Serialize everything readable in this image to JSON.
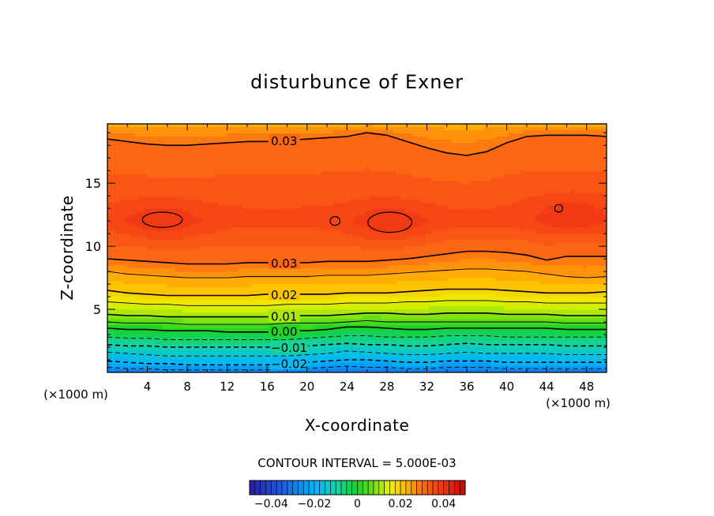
{
  "chart_data": {
    "type": "heatmap",
    "title": "disturbunce of Exner",
    "xlabel": "X-coordinate",
    "ylabel": "Z-coordinate",
    "x_unit_left": "(×1000 m)",
    "x_unit_right": "(×1000 m)",
    "xlim": [
      0,
      50
    ],
    "ylim": [
      0,
      19.7
    ],
    "x_ticks": [
      4,
      8,
      12,
      16,
      20,
      24,
      28,
      32,
      36,
      40,
      44,
      48
    ],
    "y_ticks": [
      5,
      10,
      15
    ],
    "contour_interval_text": "CONTOUR INTERVAL = 5.000E-03",
    "color_range": [
      -0.05,
      0.05
    ],
    "colorbar_ticks": [
      -0.04,
      -0.02,
      0,
      0.02,
      0.04
    ],
    "colorbar_tick_labels": [
      "−0.04",
      "−0.02",
      "0",
      "0.02",
      "0.04"
    ],
    "contours": [
      {
        "value": 0.03,
        "label": "0.03",
        "label_x": 17.7,
        "z": [
          18.5,
          18.3,
          18.1,
          18.0,
          18.0,
          18.1,
          18.2,
          18.3,
          18.3,
          18.4,
          18.5,
          18.6,
          18.7,
          19.0,
          18.8,
          18.3,
          17.8,
          17.4,
          17.2,
          17.5,
          18.2,
          18.7,
          18.8,
          18.8,
          18.8,
          18.7
        ]
      },
      {
        "value": 0.03,
        "label": "0.03",
        "label_x": 17.7,
        "z": [
          9.0,
          8.9,
          8.8,
          8.7,
          8.6,
          8.6,
          8.6,
          8.7,
          8.7,
          8.7,
          8.7,
          8.8,
          8.8,
          8.8,
          8.9,
          9.0,
          9.2,
          9.4,
          9.6,
          9.6,
          9.5,
          9.3,
          8.9,
          9.2,
          9.2,
          9.2
        ]
      },
      {
        "value": 0.025,
        "label": "",
        "label_x": null,
        "z": [
          8.0,
          7.8,
          7.7,
          7.6,
          7.5,
          7.5,
          7.5,
          7.6,
          7.6,
          7.6,
          7.6,
          7.7,
          7.7,
          7.7,
          7.8,
          7.9,
          8.0,
          8.1,
          8.2,
          8.2,
          8.1,
          8.0,
          7.8,
          7.6,
          7.5,
          7.6
        ]
      },
      {
        "value": 0.02,
        "label": "0.02",
        "label_x": 17.7,
        "z": [
          6.5,
          6.3,
          6.2,
          6.1,
          6.1,
          6.1,
          6.1,
          6.1,
          6.2,
          6.2,
          6.2,
          6.2,
          6.3,
          6.3,
          6.3,
          6.4,
          6.5,
          6.6,
          6.6,
          6.6,
          6.5,
          6.4,
          6.3,
          6.3,
          6.3,
          6.4
        ]
      },
      {
        "value": 0.015,
        "label": "",
        "label_x": null,
        "z": [
          5.6,
          5.5,
          5.4,
          5.4,
          5.3,
          5.3,
          5.3,
          5.3,
          5.3,
          5.4,
          5.4,
          5.4,
          5.5,
          5.5,
          5.5,
          5.6,
          5.6,
          5.7,
          5.7,
          5.7,
          5.6,
          5.6,
          5.5,
          5.5,
          5.5,
          5.5
        ]
      },
      {
        "value": 0.01,
        "label": "0.01",
        "label_x": 17.7,
        "z": [
          4.6,
          4.5,
          4.5,
          4.4,
          4.4,
          4.4,
          4.4,
          4.4,
          4.4,
          4.5,
          4.5,
          4.5,
          4.6,
          4.7,
          4.7,
          4.6,
          4.6,
          4.7,
          4.7,
          4.7,
          4.6,
          4.6,
          4.6,
          4.5,
          4.5,
          4.5
        ]
      },
      {
        "value": 0.005,
        "label": "",
        "label_x": null,
        "z": [
          4.0,
          3.9,
          3.9,
          3.9,
          3.8,
          3.8,
          3.8,
          3.8,
          3.8,
          3.9,
          3.9,
          3.9,
          4.0,
          4.1,
          4.0,
          4.0,
          4.0,
          4.0,
          4.0,
          4.0,
          4.0,
          4.0,
          4.0,
          3.9,
          3.9,
          3.9
        ]
      },
      {
        "value": 0.0,
        "label": "0.00",
        "label_x": 17.7,
        "z": [
          3.5,
          3.4,
          3.4,
          3.3,
          3.3,
          3.3,
          3.2,
          3.2,
          3.2,
          3.3,
          3.3,
          3.4,
          3.6,
          3.6,
          3.5,
          3.4,
          3.4,
          3.5,
          3.5,
          3.5,
          3.5,
          3.5,
          3.5,
          3.4,
          3.4,
          3.4
        ]
      },
      {
        "value": -0.005,
        "label": "",
        "label_x": null,
        "z": [
          2.8,
          2.7,
          2.7,
          2.6,
          2.6,
          2.6,
          2.6,
          2.6,
          2.6,
          2.6,
          2.7,
          2.8,
          2.9,
          2.9,
          2.8,
          2.8,
          2.8,
          2.9,
          2.9,
          2.9,
          2.8,
          2.8,
          2.8,
          2.8,
          2.8,
          2.8
        ]
      },
      {
        "value": -0.01,
        "label": "−0.01",
        "label_x": 18.2,
        "z": [
          2.2,
          2.1,
          2.1,
          2.0,
          2.0,
          2.0,
          2.0,
          2.0,
          2.0,
          2.0,
          2.1,
          2.2,
          2.3,
          2.2,
          2.2,
          2.1,
          2.1,
          2.2,
          2.3,
          2.2,
          2.2,
          2.2,
          2.2,
          2.1,
          2.1,
          2.1
        ]
      },
      {
        "value": -0.015,
        "label": "",
        "label_x": null,
        "z": [
          1.6,
          1.5,
          1.4,
          1.3,
          1.3,
          1.3,
          1.3,
          1.3,
          1.3,
          1.3,
          1.4,
          1.5,
          1.7,
          1.6,
          1.5,
          1.4,
          1.4,
          1.5,
          1.6,
          1.5,
          1.5,
          1.5,
          1.5,
          1.4,
          1.4,
          1.4
        ]
      },
      {
        "value": -0.02,
        "label": "−0.02",
        "label_x": 18.2,
        "z": [
          0.9,
          0.8,
          0.7,
          0.7,
          0.6,
          0.6,
          0.6,
          0.6,
          0.6,
          0.7,
          0.8,
          0.9,
          1.0,
          1.0,
          0.9,
          0.8,
          0.8,
          0.9,
          0.9,
          0.9,
          0.8,
          0.8,
          0.8,
          0.8,
          0.8,
          0.8
        ]
      },
      {
        "value": -0.025,
        "label": "",
        "label_x": null,
        "z": [
          0.4,
          0.3,
          0.3,
          0.2,
          0.2,
          0.2,
          0.2,
          0.2,
          0.2,
          0.3,
          0.3,
          0.4,
          0.5,
          0.4,
          0.4,
          0.3,
          0.3,
          0.4,
          0.4,
          0.4,
          0.3,
          0.3,
          0.3,
          0.3,
          0.3,
          0.3
        ]
      }
    ],
    "closed_contours": [
      {
        "value": 0.035,
        "cx": 5.5,
        "cz": 12.1,
        "rx": 2.0,
        "rz": 0.6
      },
      {
        "value": 0.035,
        "cx": 22.8,
        "cz": 12.0,
        "rx": 0.5,
        "rz": 0.35
      },
      {
        "value": 0.035,
        "cx": 28.3,
        "cz": 11.9,
        "rx": 2.2,
        "rz": 0.8
      },
      {
        "value": 0.035,
        "cx": 45.2,
        "cz": 13.0,
        "rx": 0.4,
        "rz": 0.3
      }
    ],
    "maxima": [
      {
        "x": 5.5,
        "z": 12.0,
        "value": 0.038
      },
      {
        "x": 28.3,
        "z": 11.8,
        "value": 0.038
      },
      {
        "x": 46.5,
        "z": 12.5,
        "value": 0.038
      }
    ]
  }
}
